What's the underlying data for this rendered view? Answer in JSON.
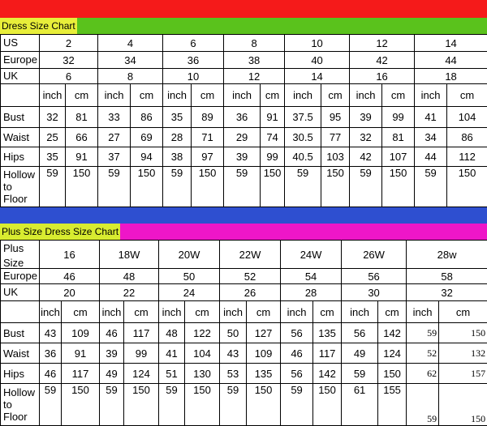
{
  "tables": [
    {
      "title": "Dress Size Chart",
      "size_rows": [
        {
          "label": "US",
          "values": [
            2,
            4,
            6,
            8,
            10,
            12,
            14
          ]
        },
        {
          "label": "Europe",
          "values": [
            32,
            34,
            36,
            38,
            40,
            42,
            44
          ]
        },
        {
          "label": "UK",
          "values": [
            6,
            8,
            10,
            12,
            14,
            16,
            18
          ]
        }
      ],
      "units": [
        "inch",
        "cm"
      ],
      "measure_rows": [
        {
          "label": "Bust",
          "values": [
            32,
            81,
            33,
            86,
            35,
            89,
            36,
            91,
            37.5,
            95,
            39,
            99,
            41,
            104
          ]
        },
        {
          "label": "Waist",
          "values": [
            25,
            66,
            27,
            69,
            28,
            71,
            29,
            74,
            30.5,
            77,
            32,
            81,
            34,
            86
          ]
        },
        {
          "label": "Hips",
          "values": [
            35,
            91,
            37,
            94,
            38,
            97,
            39,
            99,
            40.5,
            103,
            42,
            107,
            44,
            112
          ]
        },
        {
          "label": "Hollow to Floor",
          "values": [
            59,
            150,
            59,
            150,
            59,
            150,
            59,
            150,
            59,
            150,
            59,
            150,
            59,
            150
          ]
        }
      ]
    },
    {
      "title": "Plus Size Dress Size Chart",
      "size_rows": [
        {
          "label": "Plus Size",
          "values": [
            "16",
            "18W",
            "20W",
            "22W",
            "24W",
            "26W",
            "28w"
          ]
        },
        {
          "label": "Europe",
          "values": [
            "46",
            "48",
            "50",
            "52",
            "54",
            "56",
            "58"
          ]
        },
        {
          "label": "UK",
          "values": [
            "20",
            "22",
            "24",
            "26",
            "28",
            "30",
            "32"
          ]
        }
      ],
      "units": [
        "inch",
        "cm"
      ],
      "measure_rows": [
        {
          "label": "Bust",
          "values": [
            43,
            109,
            46,
            117,
            48,
            122,
            50,
            127,
            56,
            135,
            56,
            142,
            59,
            150
          ]
        },
        {
          "label": "Waist",
          "values": [
            36,
            91,
            39,
            99,
            41,
            104,
            43,
            109,
            46,
            117,
            49,
            124,
            52,
            132
          ]
        },
        {
          "label": "Hips",
          "values": [
            46,
            117,
            49,
            124,
            51,
            130,
            53,
            135,
            56,
            142,
            59,
            150,
            62,
            157
          ]
        },
        {
          "label": "Hollow to Floor",
          "values": [
            59,
            150,
            59,
            150,
            59,
            150,
            59,
            150,
            59,
            150,
            61,
            155,
            59,
            150
          ]
        }
      ]
    }
  ]
}
